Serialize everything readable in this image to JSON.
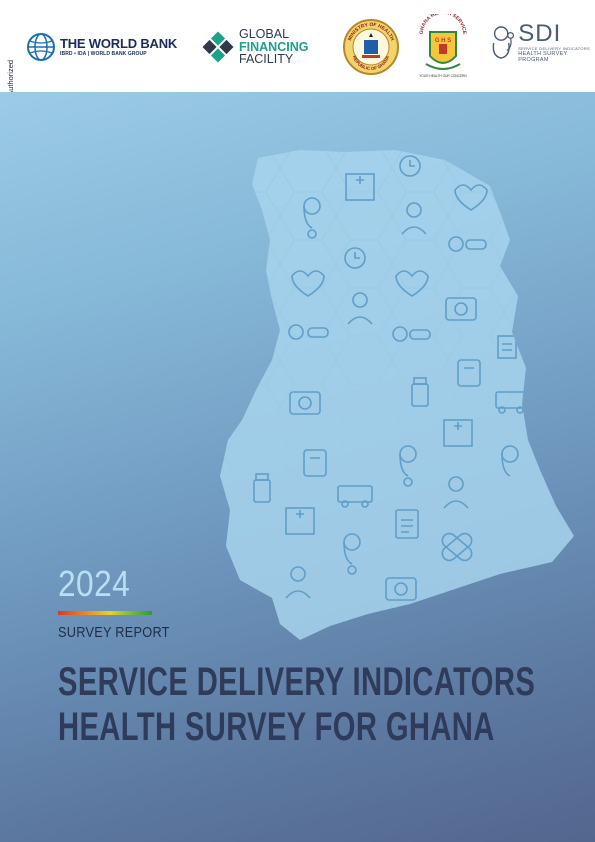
{
  "disclosure_label": "Public Disclosure Authorized",
  "logos": {
    "world_bank": {
      "name": "THE WORLD BANK",
      "sub": "IBRD • IDA | WORLD BANK GROUP"
    },
    "gff": {
      "line1": "GLOBAL",
      "line2": "FINANCING",
      "line3": "FACILITY"
    },
    "ministry": {
      "top": "MINISTRY OF HEALTH",
      "bottom": "REPUBLIC OF GHANA"
    },
    "ghs": {
      "top": "GHANA HEALTH SERVICE",
      "letters": "G H S",
      "bottom": "YOUR HEALTH OUR CONCERN"
    },
    "sdi": {
      "letters": "SDI",
      "sub1": "SERVICE DELIVERY INDICATORS",
      "sub2": "HEALTH SURVEY PROGRAM"
    }
  },
  "cover": {
    "year": "2024",
    "report_type": "SURVEY REPORT",
    "title_line1": "SERVICE DELIVERY INDICATORS",
    "title_line2": "HEALTH SURVEY FOR GHANA"
  },
  "colors": {
    "title": "#2f3b5a",
    "year": "#b9dff5",
    "map_fill": "#a9d6ee",
    "gradient_top": "#9bcbe6",
    "gradient_bottom": "#53668e"
  },
  "map_icons": [
    "ambulance-icon",
    "clock-icon",
    "hospital-icon",
    "heart-icon",
    "stethoscope-icon",
    "nurse-icon",
    "phone-icon",
    "medicine-bottle-icon",
    "first-aid-kit-icon",
    "pills-icon",
    "doctor-icon",
    "clipboard-icon",
    "bandage-icon",
    "document-icon"
  ]
}
